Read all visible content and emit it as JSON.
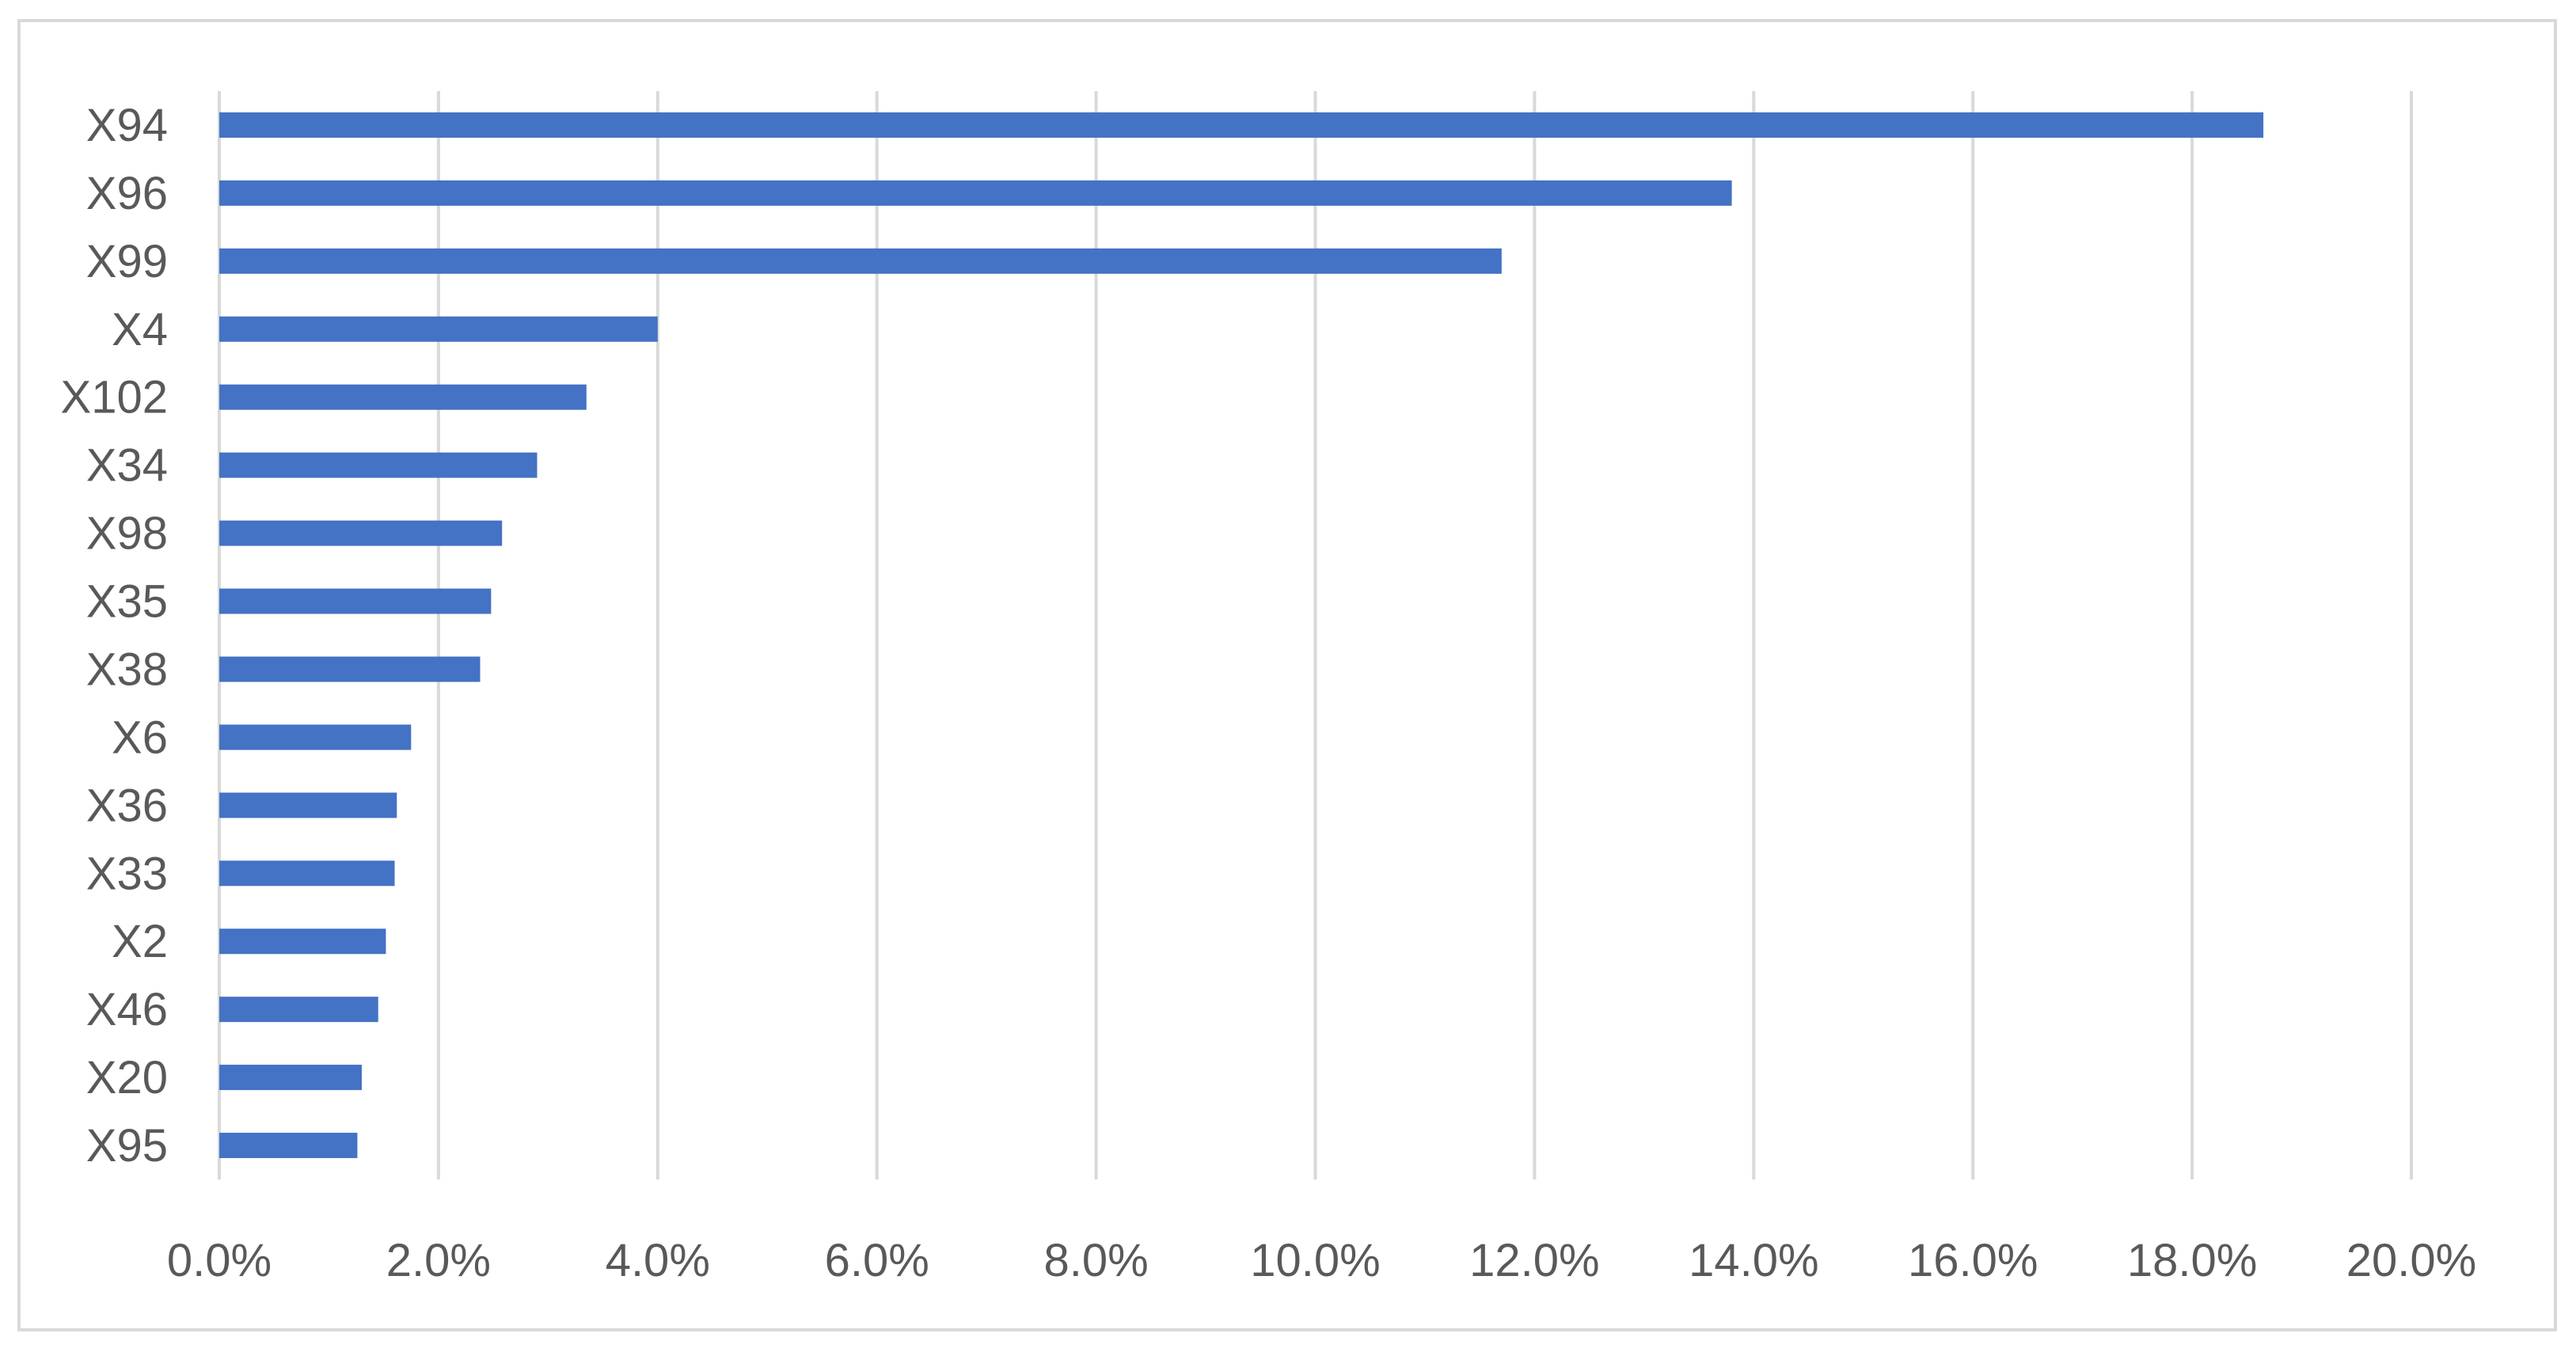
{
  "colors": {
    "bar": "#4472c4",
    "grid": "#d9d9d9",
    "label": "#595959",
    "border": "#d9d9d9"
  },
  "chart_data": {
    "type": "bar",
    "orientation": "horizontal",
    "categories": [
      "X94",
      "X96",
      "X99",
      "X4",
      "X102",
      "X34",
      "X98",
      "X35",
      "X38",
      "X6",
      "X36",
      "X33",
      "X2",
      "X46",
      "X20",
      "X95"
    ],
    "values": [
      18.65,
      13.8,
      11.7,
      4.0,
      3.35,
      2.9,
      2.58,
      2.48,
      2.38,
      1.75,
      1.62,
      1.6,
      1.52,
      1.45,
      1.3,
      1.26
    ],
    "value_unit": "%",
    "xlim": [
      0,
      20
    ],
    "x_ticks": [
      "0.0%",
      "2.0%",
      "4.0%",
      "6.0%",
      "8.0%",
      "10.0%",
      "12.0%",
      "14.0%",
      "16.0%",
      "18.0%",
      "20.0%"
    ],
    "title": "",
    "xlabel": "",
    "ylabel": "",
    "grid": "vertical",
    "legend": "none"
  }
}
